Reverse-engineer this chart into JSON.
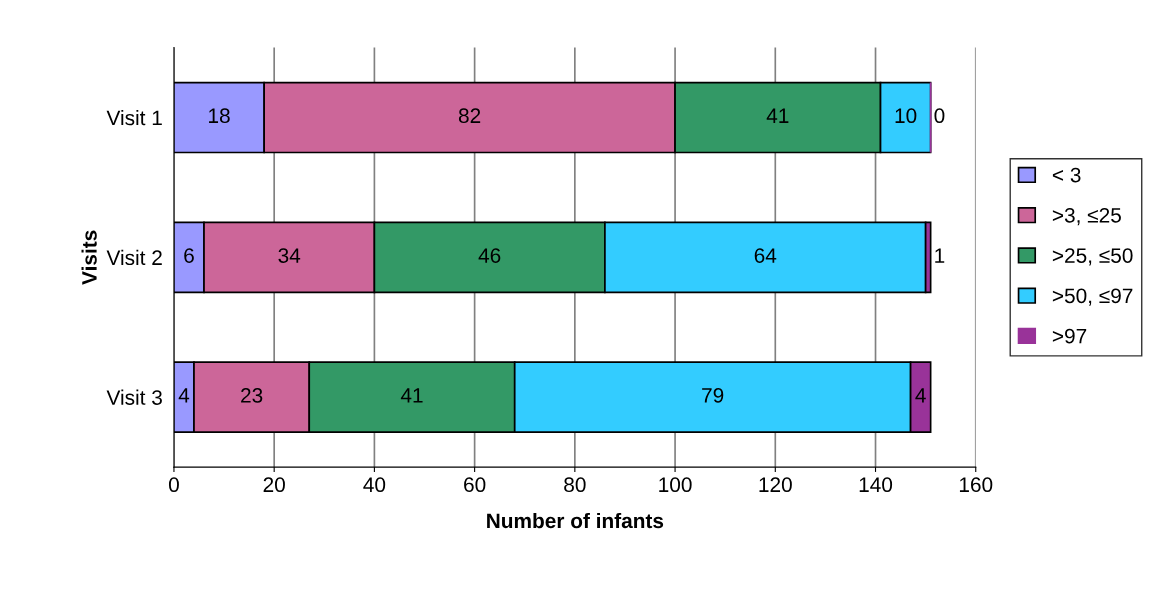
{
  "chart_data": {
    "type": "bar",
    "orientation": "horizontal",
    "stacked": true,
    "categories": [
      "Visit 1",
      "Visit 2",
      "Visit 3"
    ],
    "series": [
      {
        "name": "< 3",
        "color": "#9999ff",
        "values": [
          18,
          6,
          4
        ]
      },
      {
        "name": ">3, ≤25",
        "color": "#cc6699",
        "values": [
          82,
          34,
          23
        ]
      },
      {
        "name": ">25, ≤50",
        "color": "#339966",
        "values": [
          41,
          46,
          41
        ]
      },
      {
        "name": ">50, ≤97",
        "color": "#33ccff",
        "values": [
          10,
          64,
          79
        ]
      },
      {
        "name": ">97",
        "color": "#993399",
        "values": [
          0,
          1,
          4
        ]
      }
    ],
    "xlim": [
      0,
      160
    ],
    "xticks": [
      0,
      20,
      40,
      60,
      80,
      100,
      120,
      140,
      160
    ],
    "xlabel": "Number of infants",
    "ylabel": "Visits",
    "grid": "x",
    "legend": "right",
    "data_labels": true
  }
}
